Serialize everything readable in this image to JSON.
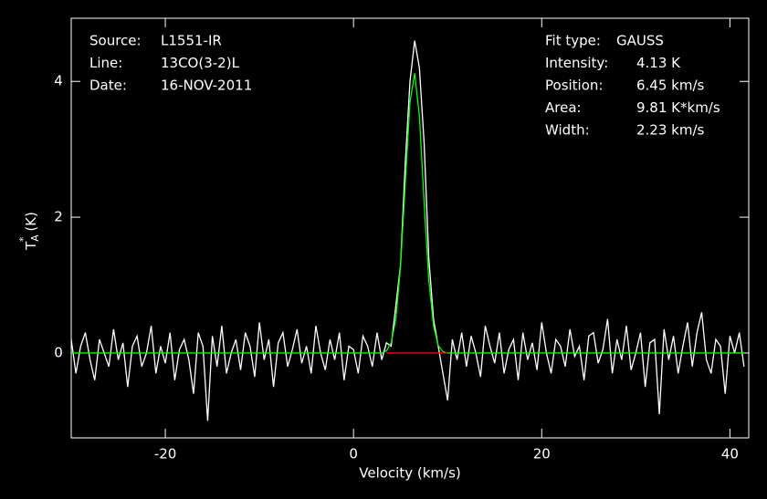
{
  "chart_data": {
    "type": "line",
    "x_label": "Velocity (km/s)",
    "y_label": {
      "main": "T",
      "sub": "A",
      "sup": "*",
      "unit": "(K)"
    },
    "annotations_left": [
      {
        "label": "Source:",
        "value": "L1551-IR"
      },
      {
        "label": "Line:",
        "value": "13CO(3-2)L"
      },
      {
        "label": "Date:",
        "value": "16-NOV-2011"
      }
    ],
    "annotations_right": [
      {
        "label": "Fit type:",
        "value": "GAUSS"
      },
      {
        "label": "Intensity:",
        "value": "4.13 K"
      },
      {
        "label": "Position:",
        "value": "6.45 km/s"
      },
      {
        "label": "Area:",
        "value": "9.81 K*km/s"
      },
      {
        "label": "Width:",
        "value": "2.23 km/s"
      }
    ],
    "xlim": [
      -30,
      42
    ],
    "ylim": [
      -1.25,
      4.93
    ],
    "xticks": [
      -20,
      0,
      20,
      40
    ],
    "yticks": [
      0,
      2,
      4
    ],
    "x": [
      -30,
      -29.5,
      -29,
      -28.5,
      -28,
      -27.5,
      -27,
      -26.5,
      -26,
      -25.5,
      -25,
      -24.5,
      -24,
      -23.5,
      -23,
      -22.5,
      -22,
      -21.5,
      -21,
      -20.5,
      -20,
      -19.5,
      -19,
      -18.5,
      -18,
      -17.5,
      -17,
      -16.5,
      -16,
      -15.5,
      -15,
      -14.5,
      -14,
      -13.5,
      -13,
      -12.5,
      -12,
      -11.5,
      -11,
      -10.5,
      -10,
      -9.5,
      -9,
      -8.5,
      -8,
      -7.5,
      -7,
      -6.5,
      -6,
      -5.5,
      -5,
      -4.5,
      -4,
      -3.5,
      -3,
      -2.5,
      -2,
      -1.5,
      -1,
      -0.5,
      0,
      0.5,
      1,
      1.5,
      2,
      2.5,
      3,
      3.5,
      4,
      4.5,
      5,
      5.5,
      6,
      6.5,
      7,
      7.5,
      8,
      8.5,
      9,
      9.5,
      10,
      10.5,
      11,
      11.5,
      12,
      12.5,
      13,
      13.5,
      14,
      14.5,
      15,
      15.5,
      16,
      16.5,
      17,
      17.5,
      18,
      18.5,
      19,
      19.5,
      20,
      20.5,
      21,
      21.5,
      22,
      22.5,
      23,
      23.5,
      24,
      24.5,
      25,
      25.5,
      26,
      26.5,
      27,
      27.5,
      28,
      28.5,
      29,
      29.5,
      30,
      30.5,
      31,
      31.5,
      32,
      32.5,
      33,
      33.5,
      34,
      34.5,
      35,
      35.5,
      36,
      36.5,
      37,
      37.5,
      38,
      38.5,
      39,
      39.5,
      40,
      40.5,
      41,
      41.5
    ],
    "series": [
      {
        "color": "#ffffff",
        "values": [
          0.2,
          -0.3,
          0.1,
          0.3,
          -0.1,
          -0.4,
          0.2,
          0.0,
          -0.2,
          0.35,
          -0.1,
          0.15,
          -0.5,
          0.1,
          0.25,
          -0.2,
          0.0,
          0.4,
          -0.3,
          0.1,
          -0.15,
          0.3,
          -0.4,
          0.05,
          0.2,
          -0.1,
          -0.6,
          0.3,
          0.1,
          -1.0,
          0.25,
          -0.2,
          0.4,
          -0.3,
          0.0,
          0.2,
          -0.25,
          0.3,
          0.1,
          -0.35,
          0.45,
          -0.1,
          0.2,
          -0.5,
          0.15,
          0.3,
          -0.2,
          0.05,
          0.35,
          -0.15,
          0.1,
          -0.3,
          0.4,
          0.0,
          -0.25,
          0.2,
          -0.1,
          0.3,
          -0.4,
          0.1,
          0.05,
          -0.3,
          0.25,
          0.1,
          -0.2,
          0.3,
          -0.1,
          0.15,
          0.1,
          0.7,
          1.3,
          2.8,
          4.0,
          4.6,
          4.2,
          3.1,
          1.4,
          0.5,
          0.1,
          -0.3,
          -0.7,
          0.2,
          -0.1,
          0.3,
          -0.2,
          0.25,
          0.0,
          -0.35,
          0.4,
          0.1,
          -0.15,
          0.3,
          -0.3,
          0.05,
          0.2,
          -0.4,
          0.3,
          -0.1,
          0.15,
          -0.25,
          0.45,
          0.0,
          -0.3,
          0.2,
          0.1,
          -0.2,
          0.35,
          -0.05,
          0.1,
          -0.4,
          0.25,
          0.3,
          -0.15,
          0.05,
          0.5,
          -0.3,
          0.2,
          -0.1,
          0.4,
          -0.25,
          0.0,
          0.3,
          -0.5,
          0.15,
          0.2,
          -0.9,
          0.35,
          -0.1,
          0.25,
          -0.3,
          0.1,
          0.45,
          -0.2,
          0.3,
          0.6,
          -0.1,
          -0.3,
          0.2,
          0.1,
          -0.6,
          0.25,
          0.0,
          0.3,
          -0.2
        ]
      },
      {
        "color": "#00ff00",
        "values": [
          0,
          0,
          0,
          0,
          0,
          0,
          0,
          0,
          0,
          0,
          0,
          0,
          0,
          0,
          0,
          0,
          0,
          0,
          0,
          0,
          0,
          0,
          0,
          0,
          0,
          0,
          0,
          0,
          0,
          0,
          0,
          0,
          0,
          0,
          0,
          0,
          0,
          0,
          0,
          0,
          0,
          0,
          0,
          0,
          0,
          0,
          0,
          0,
          0,
          0,
          0,
          0,
          0,
          0,
          0,
          0,
          0,
          0,
          0,
          0,
          0,
          0,
          0,
          0,
          0,
          0,
          0,
          0.03,
          0.15,
          0.5,
          1.28,
          2.5,
          3.69,
          4.12,
          3.49,
          2.23,
          1.08,
          0.4,
          0.11,
          0.02,
          0,
          0,
          0,
          0,
          0,
          0,
          0,
          0,
          0,
          0,
          0,
          0,
          0,
          0,
          0,
          0,
          0,
          0,
          0,
          0,
          0,
          0,
          0,
          0,
          0,
          0,
          0,
          0,
          0,
          0,
          0,
          0,
          0,
          0,
          0,
          0,
          0,
          0,
          0,
          0,
          0,
          0,
          0,
          0,
          0,
          0,
          0,
          0,
          0,
          0,
          0,
          0,
          0,
          0,
          0,
          0,
          0,
          0,
          0,
          0,
          0,
          0,
          0,
          0
        ]
      },
      {
        "color": "#ff0000",
        "x": [
          3.5,
          10
        ],
        "values": [
          0,
          0
        ]
      }
    ]
  }
}
